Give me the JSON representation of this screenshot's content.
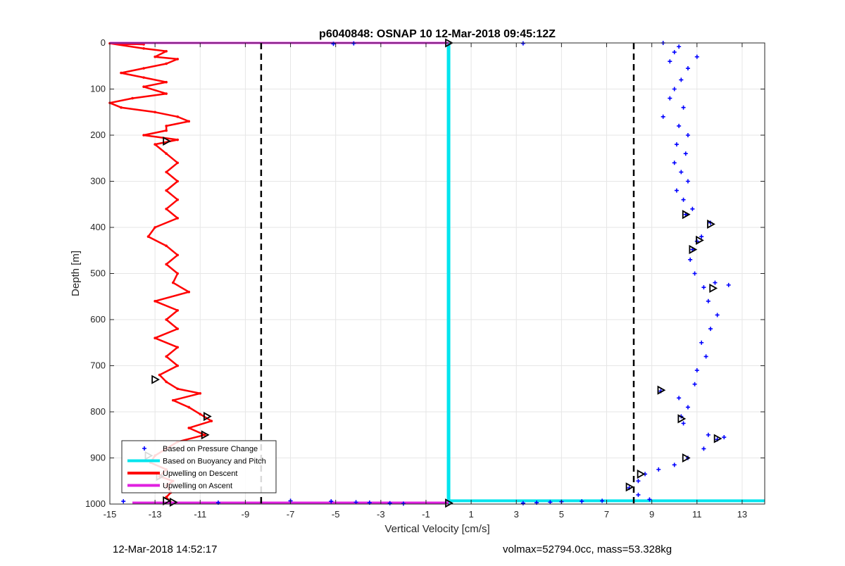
{
  "chart_data": {
    "type": "scatter",
    "title": "p6040848: OSNAP 10 12-Mar-2018 09:45:12Z",
    "xlabel": "Vertical Velocity [cm/s]",
    "ylabel": "Depth [m]",
    "xlim": [
      -15,
      14
    ],
    "ylim": [
      0,
      1000
    ],
    "y_reversed": true,
    "grid": true,
    "legend_placement": "bottom-left",
    "xticks": [
      -15,
      -13,
      -11,
      -9,
      -7,
      -5,
      -3,
      -1,
      1,
      3,
      5,
      7,
      9,
      11,
      13
    ],
    "yticks": [
      0,
      100,
      200,
      300,
      400,
      500,
      600,
      700,
      800,
      900,
      1000
    ],
    "colors": {
      "pressure": "#0000ff",
      "buoyancy": "#00e5ee",
      "descent": "#ff0000",
      "ascent": "#e020e0"
    },
    "thresholds": [
      -8.3,
      8.2
    ],
    "series": [
      {
        "name": "Based on Pressure Change",
        "marker": "+",
        "points": [
          [
            9.5,
            0
          ],
          [
            10.2,
            8
          ],
          [
            10.0,
            20
          ],
          [
            9.8,
            40
          ],
          [
            11.0,
            30
          ],
          [
            10.6,
            55
          ],
          [
            10.3,
            80
          ],
          [
            10.0,
            100
          ],
          [
            9.8,
            120
          ],
          [
            10.4,
            140
          ],
          [
            9.5,
            160
          ],
          [
            10.2,
            180
          ],
          [
            10.6,
            200
          ],
          [
            10.1,
            220
          ],
          [
            10.5,
            240
          ],
          [
            10.0,
            260
          ],
          [
            10.3,
            280
          ],
          [
            10.6,
            300
          ],
          [
            10.1,
            320
          ],
          [
            10.4,
            340
          ],
          [
            10.8,
            360
          ],
          [
            10.5,
            372
          ],
          [
            11.6,
            390
          ],
          [
            11.2,
            420
          ],
          [
            11.0,
            430
          ],
          [
            10.8,
            448
          ],
          [
            10.7,
            470
          ],
          [
            10.9,
            500
          ],
          [
            11.3,
            530
          ],
          [
            11.8,
            520
          ],
          [
            12.4,
            525
          ],
          [
            11.5,
            560
          ],
          [
            11.9,
            590
          ],
          [
            11.6,
            620
          ],
          [
            11.2,
            650
          ],
          [
            11.4,
            680
          ],
          [
            11.0,
            710
          ],
          [
            10.9,
            740
          ],
          [
            9.4,
            755
          ],
          [
            10.2,
            770
          ],
          [
            10.6,
            790
          ],
          [
            10.3,
            810
          ],
          [
            10.4,
            825
          ],
          [
            11.5,
            850
          ],
          [
            11.9,
            860
          ],
          [
            12.2,
            855
          ],
          [
            11.3,
            880
          ],
          [
            10.6,
            900
          ],
          [
            10.0,
            915
          ],
          [
            9.3,
            925
          ],
          [
            8.7,
            935
          ],
          [
            8.4,
            950
          ],
          [
            8.0,
            965
          ],
          [
            8.4,
            980
          ],
          [
            8.9,
            990
          ],
          [
            -14.4,
            994
          ],
          [
            -10.2,
            997
          ],
          [
            -7.0,
            993
          ],
          [
            -5.2,
            994
          ],
          [
            -4.1,
            996
          ],
          [
            -3.5,
            997
          ],
          [
            -2.6,
            998
          ],
          [
            -2.0,
            999
          ],
          [
            3.3,
            998
          ],
          [
            3.9,
            997
          ],
          [
            4.5,
            996
          ],
          [
            5.0,
            995
          ],
          [
            5.9,
            994
          ],
          [
            6.8,
            993
          ],
          [
            -5.1,
            2
          ],
          [
            -4.2,
            1
          ],
          [
            3.3,
            1
          ]
        ]
      },
      {
        "name": "Based on Buoyancy and Pitch",
        "xs": [
          0,
          0
        ],
        "ys": [
          0,
          1000
        ],
        "extra_lines": [
          {
            "xs": [
              0,
              14
            ],
            "ys": [
              993,
              993
            ]
          }
        ]
      },
      {
        "name": "Upwelling on Descent",
        "points": [
          [
            -13.5,
            3
          ],
          [
            -15,
            1
          ],
          [
            -13.5,
            12
          ],
          [
            -12.5,
            18
          ],
          [
            -13.0,
            30
          ],
          [
            -12.0,
            35
          ],
          [
            -12.5,
            45
          ],
          [
            -13.5,
            55
          ],
          [
            -14.5,
            65
          ],
          [
            -13.5,
            75
          ],
          [
            -12.5,
            85
          ],
          [
            -13.5,
            95
          ],
          [
            -12.5,
            110
          ],
          [
            -14.0,
            120
          ],
          [
            -15.0,
            130
          ],
          [
            -14.5,
            140
          ],
          [
            -13.0,
            150
          ],
          [
            -12.0,
            160
          ],
          [
            -11.5,
            170
          ],
          [
            -12.5,
            180
          ],
          [
            -12.5,
            190
          ],
          [
            -13.5,
            200
          ],
          [
            -12.0,
            210
          ],
          [
            -13.0,
            220
          ],
          [
            -12.5,
            240
          ],
          [
            -12.0,
            260
          ],
          [
            -12.5,
            280
          ],
          [
            -12.0,
            300
          ],
          [
            -12.5,
            320
          ],
          [
            -12.0,
            340
          ],
          [
            -12.5,
            360
          ],
          [
            -12.0,
            380
          ],
          [
            -13.0,
            400
          ],
          [
            -13.3,
            420
          ],
          [
            -12.5,
            440
          ],
          [
            -12.0,
            460
          ],
          [
            -12.5,
            480
          ],
          [
            -12.0,
            500
          ],
          [
            -12.2,
            520
          ],
          [
            -11.5,
            540
          ],
          [
            -13.0,
            560
          ],
          [
            -12.0,
            580
          ],
          [
            -12.5,
            600
          ],
          [
            -12.0,
            620
          ],
          [
            -13.0,
            640
          ],
          [
            -12.0,
            660
          ],
          [
            -12.5,
            680
          ],
          [
            -12.0,
            700
          ],
          [
            -12.8,
            720
          ],
          [
            -12.5,
            735
          ],
          [
            -12.0,
            750
          ],
          [
            -11.0,
            760
          ],
          [
            -12.2,
            775
          ],
          [
            -11.5,
            790
          ],
          [
            -11.0,
            805
          ],
          [
            -10.5,
            820
          ],
          [
            -11.5,
            835
          ],
          [
            -10.8,
            850
          ],
          [
            -12.0,
            865
          ],
          [
            -12.5,
            880
          ],
          [
            -13.0,
            895
          ],
          [
            -13.2,
            910
          ],
          [
            -12.5,
            925
          ],
          [
            -12.8,
            940
          ],
          [
            -12.2,
            950
          ],
          [
            -12.5,
            960
          ],
          [
            -12.3,
            975
          ],
          [
            -12.5,
            985
          ],
          [
            -12.3,
            996
          ]
        ]
      },
      {
        "name": "Upwelling on Ascent",
        "segments": [
          {
            "xs": [
              -15,
              0
            ],
            "ys": [
              0,
              0
            ]
          },
          {
            "xs": [
              -14.0,
              0
            ],
            "ys": [
              997,
              997
            ]
          }
        ]
      }
    ],
    "annotations": [
      {
        "x": 0,
        "y": 0
      },
      {
        "x": -12.5,
        "y": 213
      },
      {
        "x": -13.0,
        "y": 730
      },
      {
        "x": -10.7,
        "y": 810
      },
      {
        "x": -10.8,
        "y": 850
      },
      {
        "x": -13.3,
        "y": 895
      },
      {
        "x": -12.5,
        "y": 993
      },
      {
        "x": -12.2,
        "y": 996
      },
      {
        "x": -12.8,
        "y": 940
      },
      {
        "x": 0,
        "y": 998
      },
      {
        "x": 10.5,
        "y": 372
      },
      {
        "x": 11.6,
        "y": 393
      },
      {
        "x": 11.1,
        "y": 428
      },
      {
        "x": 10.8,
        "y": 448
      },
      {
        "x": 11.7,
        "y": 532
      },
      {
        "x": 9.4,
        "y": 753
      },
      {
        "x": 10.3,
        "y": 815
      },
      {
        "x": 11.9,
        "y": 858
      },
      {
        "x": 10.5,
        "y": 900
      },
      {
        "x": 8.5,
        "y": 935
      },
      {
        "x": 8.0,
        "y": 963
      }
    ]
  },
  "footer": {
    "left": "12-Mar-2018 14:52:17",
    "right": "volmax=52794.0cc, mass=53.328kg"
  }
}
